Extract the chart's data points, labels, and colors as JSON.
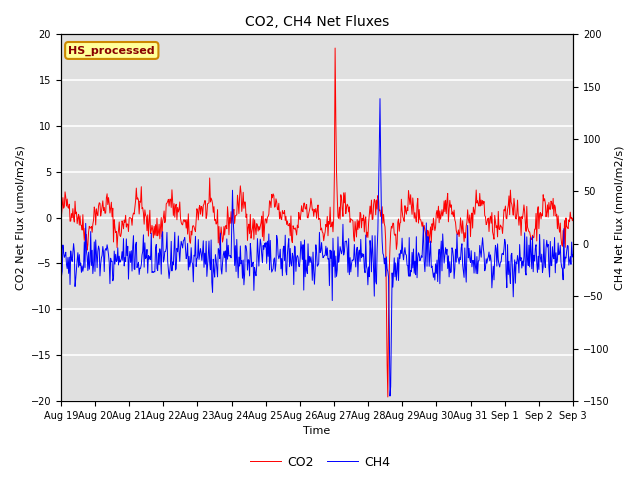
{
  "title": "CO2, CH4 Net Fluxes",
  "xlabel": "Time",
  "ylabel_left": "CO2 Net Flux (umol/m2/s)",
  "ylabel_right": "CH4 Net Flux (nmol/m2/s)",
  "ylim_left": [
    -20,
    20
  ],
  "ylim_right": [
    -150,
    200
  ],
  "yticks_left": [
    -20,
    -15,
    -10,
    -5,
    0,
    5,
    10,
    15,
    20
  ],
  "yticks_right": [
    -150,
    -100,
    -50,
    0,
    50,
    100,
    150,
    200
  ],
  "legend_label_co2": "CO2",
  "legend_label_ch4": "CH4",
  "annotation_text": "HS_processed",
  "annotation_box_color": "#ffff99",
  "annotation_border_color": "#cc8800",
  "annotation_text_color": "#880000",
  "co2_color": "red",
  "ch4_color": "blue",
  "background_color": "#e0e0e0",
  "grid_color": "white",
  "seed": 42,
  "figsize": [
    6.4,
    4.8
  ],
  "dpi": 100,
  "title_fontsize": 10,
  "label_fontsize": 8,
  "tick_fontsize": 7,
  "legend_fontsize": 9,
  "linewidth": 0.7
}
